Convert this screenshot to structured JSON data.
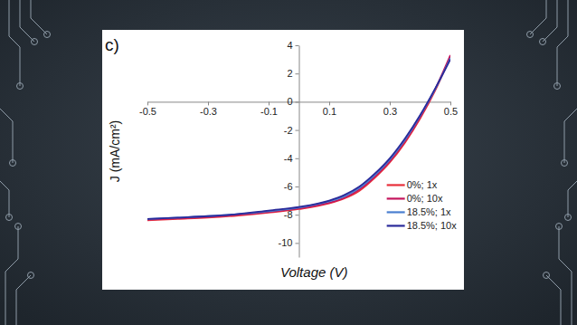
{
  "chart_data": {
    "type": "line",
    "title": "c)",
    "x_label": "Voltage (V)",
    "y_label": "J (mA/cm²)",
    "x": [
      -0.5,
      -0.4,
      -0.3,
      -0.2,
      -0.1,
      0,
      0.1,
      0.15,
      0.2,
      0.25,
      0.3,
      0.35,
      0.4,
      0.45,
      0.5
    ],
    "series": [
      {
        "name": "0%; 1x",
        "color": "#e8303a",
        "values": [
          -8.4,
          -8.3,
          -8.2,
          -8.05,
          -7.85,
          -7.6,
          -7.2,
          -6.85,
          -6.3,
          -5.4,
          -4.3,
          -2.9,
          -1.2,
          0.8,
          3.2
        ]
      },
      {
        "name": "0%; 10x",
        "color": "#c4145c",
        "values": [
          -8.35,
          -8.25,
          -8.15,
          -8.0,
          -7.8,
          -7.55,
          -7.15,
          -6.8,
          -6.2,
          -5.3,
          -4.2,
          -2.8,
          -1.1,
          0.9,
          3.3
        ]
      },
      {
        "name": "18.5%; 1x",
        "color": "#4a7fd0",
        "values": [
          -8.3,
          -8.2,
          -8.1,
          -7.95,
          -7.75,
          -7.5,
          -7.05,
          -6.7,
          -6.1,
          -5.2,
          -4.1,
          -2.7,
          -1.0,
          0.9,
          3.1
        ]
      },
      {
        "name": "18.5%; 10x",
        "color": "#2a2a9a",
        "values": [
          -8.3,
          -8.2,
          -8.1,
          -7.95,
          -7.7,
          -7.45,
          -7.0,
          -6.6,
          -6.0,
          -5.1,
          -4.0,
          -2.6,
          -0.95,
          0.95,
          3.0
        ]
      }
    ],
    "xlim": [
      -0.5,
      0.5
    ],
    "xticks": [
      -0.5,
      -0.3,
      -0.1,
      0.1,
      0.3,
      0.5
    ],
    "ylim": [
      -11,
      4
    ],
    "yticks": [
      4,
      2,
      0,
      -2,
      -4,
      -6,
      -8,
      -10
    ],
    "grid": false,
    "legend": "lower right"
  }
}
